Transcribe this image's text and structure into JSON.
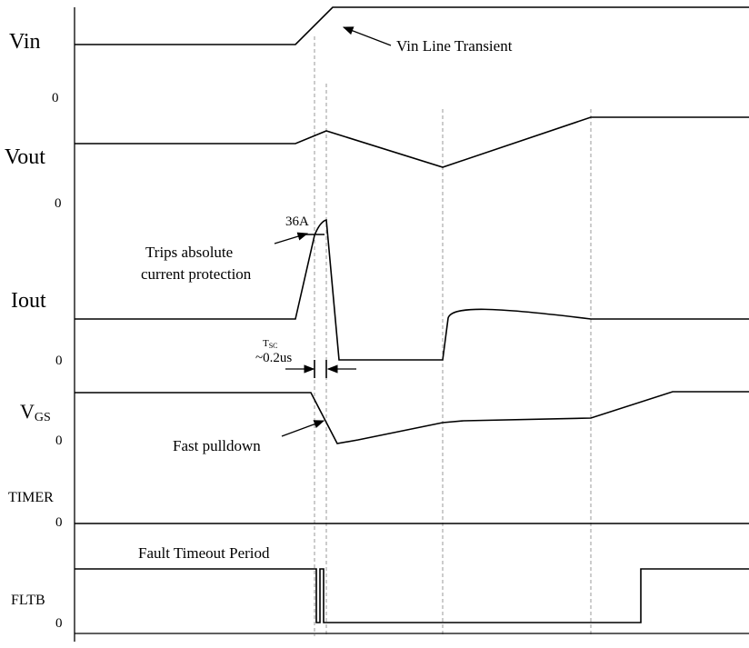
{
  "signals": {
    "vin": "Vin",
    "vout": "Vout",
    "iout": "Iout",
    "vgs_main": "V",
    "vgs_sub": "GS",
    "timer": "TIMER",
    "fltb": "FLTB"
  },
  "zero_label": "0",
  "annotations": {
    "vin_transient": "Vin Line Transient",
    "peak_current": "36A",
    "trips_line1": "Trips absolute",
    "trips_line2": "current protection",
    "tsc_main": "T",
    "tsc_sub": "SC",
    "tsc_value": "~0.2us",
    "fast_pulldown": "Fast pulldown",
    "fault_timeout": "Fault Timeout Period"
  }
}
